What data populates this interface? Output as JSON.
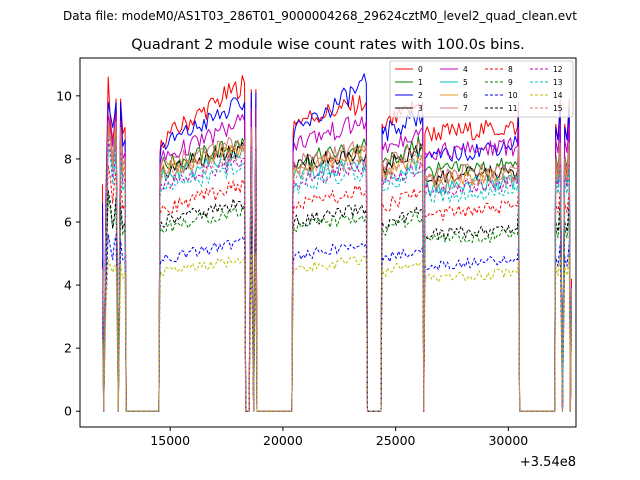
{
  "chart_data": {
    "type": "line",
    "suptitle": "Data file: modeM0/AS1T03_286T01_9000004268_29624cztM0_level2_quad_clean.evt",
    "title": "Quadrant 2 module wise count rates with 100.0s bins.",
    "xlabel": "",
    "ylabel": "",
    "x_offset_label": "+3.54e8",
    "xlim": [
      11000,
      33000
    ],
    "ylim": [
      -0.5,
      11.2
    ],
    "x_ticks": [
      15000,
      20000,
      25000,
      30000
    ],
    "y_ticks": [
      0,
      2,
      4,
      6,
      8,
      10
    ],
    "legend_location": "upper-right",
    "x_knots": [
      12000,
      12050,
      12150,
      12250,
      12350,
      12450,
      12600,
      12700,
      12800,
      12900,
      13000,
      13050,
      13100,
      14500,
      14550,
      14600,
      18300,
      18350,
      18400,
      18500,
      18600,
      18700,
      18800,
      18850,
      18900,
      20400,
      20450,
      20500,
      23700,
      23750,
      23800,
      24350,
      24400,
      24450,
      26200,
      26250,
      26300,
      30400,
      30450,
      30500,
      32000,
      32050,
      32100,
      32200,
      32300,
      32400,
      32500,
      32600,
      32700,
      32750,
      32800
    ],
    "series": [
      {
        "name": "0",
        "color": "#ff0000",
        "dash": false,
        "values": [
          7.2,
          0,
          6.8,
          10.6,
          9.2,
          8.6,
          9.9,
          0,
          9.9,
          8.8,
          9.0,
          0,
          0,
          0,
          8.2,
          8.6,
          10.4,
          0,
          0,
          0,
          10.2,
          0,
          10.2,
          0,
          0,
          0,
          8.8,
          9.2,
          9.8,
          0,
          0,
          0,
          9.1,
          9.0,
          9.8,
          0,
          8.8,
          9.0,
          9.8,
          0,
          0,
          0,
          9.1,
          8.6,
          9.9,
          0,
          9.1,
          8.6,
          9.9,
          0,
          4.2
        ]
      },
      {
        "name": "1",
        "color": "#008000",
        "dash": false,
        "values": [
          4.8,
          0,
          5.8,
          9.2,
          8.8,
          8.0,
          9.2,
          0,
          9.0,
          7.8,
          8.0,
          0,
          0,
          0,
          7.6,
          7.8,
          8.5,
          0,
          0,
          0,
          9.0,
          0,
          9.0,
          0,
          0,
          0,
          7.6,
          7.9,
          8.4,
          0,
          0,
          0,
          8.0,
          7.9,
          8.5,
          0,
          7.6,
          7.8,
          8.4,
          0,
          0,
          0,
          8.1,
          7.7,
          8.6,
          0,
          8.1,
          7.7,
          8.6,
          0,
          3.9
        ]
      },
      {
        "name": "2",
        "color": "#0000ff",
        "dash": false,
        "values": [
          6.6,
          0,
          6.6,
          9.8,
          9.4,
          9.0,
          9.8,
          0,
          9.8,
          8.4,
          8.6,
          0,
          0,
          0,
          8.0,
          8.4,
          9.8,
          0,
          0,
          0,
          10.1,
          0,
          10.1,
          0,
          0,
          0,
          8.4,
          8.8,
          10.4,
          0,
          0,
          0,
          9.0,
          8.8,
          9.4,
          0,
          8.0,
          8.5,
          9.4,
          0,
          0,
          0,
          9.0,
          8.6,
          9.6,
          0,
          9.0,
          8.6,
          9.6,
          0,
          4.0
        ]
      },
      {
        "name": "3",
        "color": "#000000",
        "dash": false,
        "values": [
          4.6,
          0,
          5.4,
          9.0,
          8.8,
          7.8,
          9.0,
          0,
          8.8,
          7.6,
          7.8,
          0,
          0,
          0,
          7.2,
          7.6,
          8.4,
          0,
          0,
          0,
          8.8,
          0,
          8.8,
          0,
          0,
          0,
          7.5,
          7.8,
          8.2,
          0,
          0,
          0,
          7.8,
          7.7,
          8.3,
          0,
          7.4,
          7.6,
          8.2,
          0,
          0,
          0,
          7.9,
          7.5,
          8.4,
          0,
          7.9,
          7.5,
          8.4,
          0,
          3.8
        ]
      },
      {
        "name": "4",
        "color": "#c000c0",
        "dash": false,
        "values": [
          4.6,
          0,
          6.0,
          9.4,
          9.0,
          8.4,
          9.4,
          0,
          9.2,
          8.0,
          8.2,
          0,
          0,
          0,
          7.8,
          8.0,
          9.2,
          0,
          0,
          0,
          9.6,
          0,
          9.6,
          0,
          0,
          0,
          8.2,
          8.5,
          9.2,
          0,
          0,
          0,
          8.5,
          8.3,
          9.0,
          0,
          8.2,
          8.4,
          9.0,
          0,
          0,
          0,
          8.6,
          8.2,
          9.1,
          0,
          8.6,
          8.2,
          9.1,
          0,
          4.0
        ]
      },
      {
        "name": "5",
        "color": "#00bfbf",
        "dash": false,
        "values": [
          4.2,
          0,
          5.6,
          8.8,
          8.6,
          7.6,
          8.8,
          0,
          8.6,
          7.4,
          7.6,
          0,
          0,
          0,
          7.0,
          7.4,
          8.2,
          0,
          0,
          0,
          8.6,
          0,
          8.6,
          0,
          0,
          0,
          7.2,
          7.5,
          7.9,
          0,
          0,
          0,
          7.4,
          7.3,
          8.0,
          0,
          7.1,
          7.3,
          7.9,
          0,
          0,
          0,
          7.6,
          7.2,
          8.0,
          0,
          7.6,
          7.2,
          8.0,
          0,
          3.7
        ]
      },
      {
        "name": "6",
        "color": "#e89020",
        "dash": false,
        "values": [
          4.4,
          0,
          5.6,
          9.0,
          8.6,
          7.8,
          9.0,
          0,
          8.8,
          7.6,
          7.8,
          0,
          0,
          0,
          7.2,
          7.6,
          8.4,
          0,
          0,
          0,
          8.8,
          0,
          8.8,
          0,
          0,
          0,
          7.4,
          7.7,
          8.2,
          0,
          0,
          0,
          7.8,
          7.6,
          8.2,
          0,
          7.3,
          7.5,
          8.1,
          0,
          0,
          0,
          7.8,
          7.4,
          8.3,
          0,
          7.8,
          7.4,
          8.3,
          0,
          3.8
        ]
      },
      {
        "name": "7",
        "color": "#d47878",
        "dash": false,
        "values": [
          4.5,
          0,
          5.8,
          9.2,
          8.8,
          8.0,
          9.2,
          0,
          9.0,
          7.8,
          8.0,
          0,
          0,
          0,
          7.4,
          7.8,
          8.6,
          0,
          0,
          0,
          9.0,
          0,
          9.0,
          0,
          0,
          0,
          7.6,
          7.9,
          8.4,
          0,
          0,
          0,
          8.0,
          7.8,
          8.4,
          0,
          7.5,
          7.7,
          8.4,
          0,
          0,
          0,
          8.0,
          7.6,
          8.5,
          0,
          8.0,
          7.6,
          8.5,
          0,
          3.9
        ]
      },
      {
        "name": "8",
        "color": "#ff0000",
        "dash": true,
        "values": [
          3.6,
          0,
          5.0,
          7.8,
          7.4,
          6.6,
          7.6,
          0,
          7.4,
          6.4,
          6.6,
          0,
          0,
          0,
          6.2,
          6.4,
          7.2,
          0,
          0,
          0,
          7.6,
          0,
          7.6,
          0,
          0,
          0,
          6.2,
          6.5,
          7.0,
          0,
          0,
          0,
          6.6,
          6.5,
          7.0,
          0,
          6.2,
          6.5,
          7.0,
          0,
          0,
          0,
          6.6,
          6.3,
          7.0,
          0,
          6.6,
          6.3,
          7.0,
          0,
          3.4
        ]
      },
      {
        "name": "9",
        "color": "#008000",
        "dash": true,
        "values": [
          3.2,
          0,
          4.4,
          6.8,
          6.4,
          5.8,
          6.6,
          0,
          6.4,
          5.6,
          5.8,
          0,
          0,
          0,
          5.6,
          5.8,
          6.4,
          0,
          0,
          0,
          6.8,
          0,
          6.8,
          0,
          0,
          0,
          5.6,
          5.8,
          6.2,
          0,
          0,
          0,
          5.8,
          5.7,
          6.2,
          0,
          5.4,
          5.6,
          6.2,
          0,
          0,
          0,
          5.8,
          5.5,
          6.2,
          0,
          5.8,
          5.5,
          6.2,
          0,
          3.1
        ]
      },
      {
        "name": "10",
        "color": "#0000ff",
        "dash": true,
        "values": [
          2.8,
          0,
          3.8,
          5.6,
          5.2,
          4.8,
          5.6,
          0,
          5.4,
          4.8,
          4.9,
          0,
          0,
          0,
          4.6,
          4.8,
          5.4,
          0,
          0,
          0,
          5.8,
          0,
          5.8,
          0,
          0,
          0,
          4.7,
          4.9,
          5.3,
          0,
          0,
          0,
          4.9,
          4.8,
          5.2,
          0,
          4.6,
          4.8,
          5.2,
          0,
          0,
          0,
          4.9,
          4.6,
          5.3,
          0,
          4.9,
          4.6,
          5.3,
          0,
          2.9
        ]
      },
      {
        "name": "11",
        "color": "#000000",
        "dash": true,
        "values": [
          3.0,
          0,
          4.6,
          7.0,
          6.6,
          5.8,
          6.8,
          0,
          6.6,
          5.8,
          6.0,
          0,
          0,
          0,
          5.8,
          6.0,
          6.6,
          0,
          0,
          0,
          7.0,
          0,
          7.0,
          0,
          0,
          0,
          5.8,
          6.0,
          6.4,
          0,
          0,
          0,
          6.0,
          5.9,
          6.4,
          0,
          5.6,
          5.8,
          6.5,
          0,
          0,
          0,
          6.0,
          5.7,
          6.6,
          0,
          6.0,
          5.7,
          6.6,
          0,
          3.2
        ]
      },
      {
        "name": "12",
        "color": "#c000c0",
        "dash": true,
        "values": [
          3.8,
          0,
          5.4,
          8.6,
          8.2,
          7.4,
          8.4,
          0,
          8.2,
          7.2,
          7.4,
          0,
          0,
          0,
          7.0,
          7.2,
          8.0,
          0,
          0,
          0,
          8.4,
          0,
          8.4,
          0,
          0,
          0,
          7.0,
          7.3,
          7.8,
          0,
          0,
          0,
          7.4,
          7.2,
          7.8,
          0,
          7.0,
          7.2,
          7.8,
          0,
          0,
          0,
          7.4,
          7.1,
          7.9,
          0,
          7.4,
          7.1,
          7.9,
          0,
          3.6
        ]
      },
      {
        "name": "13",
        "color": "#00bfbf",
        "dash": true,
        "values": [
          3.7,
          0,
          5.2,
          8.4,
          8.0,
          7.2,
          8.2,
          0,
          8.0,
          7.0,
          7.2,
          0,
          0,
          0,
          6.8,
          7.0,
          7.8,
          0,
          0,
          0,
          8.2,
          0,
          8.2,
          0,
          0,
          0,
          6.8,
          7.1,
          7.6,
          0,
          0,
          0,
          7.2,
          7.0,
          7.6,
          0,
          6.8,
          7.0,
          7.6,
          0,
          0,
          0,
          7.2,
          6.9,
          7.7,
          0,
          7.2,
          6.9,
          7.7,
          0,
          3.5
        ]
      },
      {
        "name": "14",
        "color": "#bfbf00",
        "dash": true,
        "values": [
          2.2,
          0,
          3.2,
          4.8,
          4.6,
          4.4,
          4.6,
          0,
          4.6,
          4.2,
          4.4,
          0,
          0,
          0,
          4.2,
          4.4,
          4.8,
          0,
          0,
          0,
          5.0,
          0,
          5.0,
          0,
          0,
          0,
          4.3,
          4.5,
          4.8,
          0,
          0,
          0,
          4.5,
          4.4,
          4.8,
          0,
          4.2,
          4.4,
          4.8,
          0,
          0,
          0,
          4.6,
          4.3,
          4.9,
          0,
          4.6,
          4.3,
          4.9,
          0,
          2.8
        ]
      },
      {
        "name": "15",
        "color": "#d47878",
        "dash": true,
        "values": [
          3.9,
          0,
          5.6,
          8.8,
          8.4,
          7.6,
          8.6,
          0,
          8.4,
          7.4,
          7.6,
          0,
          0,
          0,
          7.2,
          7.4,
          8.2,
          0,
          0,
          0,
          8.6,
          0,
          8.6,
          0,
          0,
          0,
          7.2,
          7.5,
          8.0,
          0,
          0,
          0,
          7.6,
          7.4,
          8.0,
          0,
          7.2,
          7.4,
          8.0,
          0,
          0,
          0,
          7.6,
          7.3,
          8.1,
          0,
          7.6,
          7.3,
          8.1,
          0,
          3.7
        ]
      }
    ]
  }
}
